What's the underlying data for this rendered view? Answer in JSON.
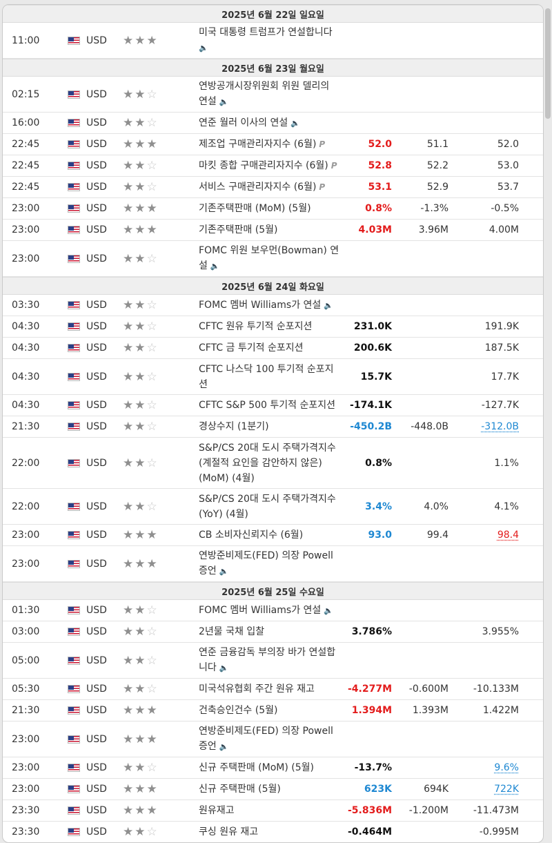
{
  "sections": [
    {
      "date": "2025년 6월 22일 일요일",
      "events": [
        {
          "time": "11:00",
          "currency": "USD",
          "stars": 3,
          "lines": [
            "미국 대통령 트럼프가 연설합니다"
          ],
          "speech": true,
          "speech_line": "next",
          "actual": "",
          "actual_color": "",
          "forecast": "",
          "previous": "",
          "previous_style": ""
        }
      ]
    },
    {
      "date": "2025년 6월 23일 월요일",
      "events": [
        {
          "time": "02:15",
          "currency": "USD",
          "stars": 2,
          "lines": [
            "연방공개시장위원회 위원 델리의",
            "연설"
          ],
          "speech": true,
          "speech_line": "last",
          "actual": "",
          "actual_color": "",
          "forecast": "",
          "previous": "",
          "previous_style": ""
        },
        {
          "time": "16:00",
          "currency": "USD",
          "stars": 2,
          "lines": [
            "연준 월러 이사의 연설"
          ],
          "speech": true,
          "speech_line": "last",
          "actual": "",
          "actual_color": "",
          "forecast": "",
          "previous": "",
          "previous_style": ""
        },
        {
          "time": "22:45",
          "currency": "USD",
          "stars": 3,
          "lines": [
            "제조업 구매관리자지수 (6월)"
          ],
          "pmark": true,
          "actual": "52.0",
          "actual_color": "red",
          "forecast": "51.1",
          "previous": "52.0",
          "previous_style": ""
        },
        {
          "time": "22:45",
          "currency": "USD",
          "stars": 2,
          "lines": [
            "마킷 종합 구매관리자지수 (6월)"
          ],
          "pmark": true,
          "actual": "52.8",
          "actual_color": "red",
          "forecast": "52.2",
          "previous": "53.0",
          "previous_style": ""
        },
        {
          "time": "22:45",
          "currency": "USD",
          "stars": 2,
          "lines": [
            "서비스 구매관리자지수 (6월)"
          ],
          "pmark": true,
          "actual": "53.1",
          "actual_color": "red",
          "forecast": "52.9",
          "previous": "53.7",
          "previous_style": ""
        },
        {
          "time": "23:00",
          "currency": "USD",
          "stars": 3,
          "lines": [
            "기존주택판매 (MoM) (5월)"
          ],
          "actual": "0.8%",
          "actual_color": "red",
          "forecast": "-1.3%",
          "previous": "-0.5%",
          "previous_style": ""
        },
        {
          "time": "23:00",
          "currency": "USD",
          "stars": 3,
          "lines": [
            "기존주택판매 (5월)"
          ],
          "actual": "4.03M",
          "actual_color": "red",
          "forecast": "3.96M",
          "previous": "4.00M",
          "previous_style": ""
        },
        {
          "time": "23:00",
          "currency": "USD",
          "stars": 2,
          "lines": [
            "FOMC 위원 보우먼(Bowman) 연",
            "설"
          ],
          "speech": true,
          "speech_line": "last",
          "actual": "",
          "actual_color": "",
          "forecast": "",
          "previous": "",
          "previous_style": ""
        }
      ]
    },
    {
      "date": "2025년 6월 24일 화요일",
      "events": [
        {
          "time": "03:30",
          "currency": "USD",
          "stars": 2,
          "lines": [
            "FOMC 멤버 Williams가 연설"
          ],
          "speech": true,
          "speech_line": "last",
          "actual": "",
          "actual_color": "",
          "forecast": "",
          "previous": "",
          "previous_style": ""
        },
        {
          "time": "04:30",
          "currency": "USD",
          "stars": 2,
          "lines": [
            "CFTC 원유 투기적 순포지션"
          ],
          "actual": "231.0K",
          "actual_color": "black",
          "forecast": "",
          "previous": "191.9K",
          "previous_style": ""
        },
        {
          "time": "04:30",
          "currency": "USD",
          "stars": 2,
          "lines": [
            "CFTC 금 투기적 순포지션"
          ],
          "actual": "200.6K",
          "actual_color": "black",
          "forecast": "",
          "previous": "187.5K",
          "previous_style": ""
        },
        {
          "time": "04:30",
          "currency": "USD",
          "stars": 2,
          "lines": [
            "CFTC 나스닥 100 투기적 순포지",
            "션"
          ],
          "actual": "15.7K",
          "actual_color": "black",
          "forecast": "",
          "previous": "17.7K",
          "previous_style": ""
        },
        {
          "time": "04:30",
          "currency": "USD",
          "stars": 2,
          "lines": [
            "CFTC S&P 500 투기적 순포지션"
          ],
          "actual": "-174.1K",
          "actual_color": "black",
          "forecast": "",
          "previous": "-127.7K",
          "previous_style": ""
        },
        {
          "time": "21:30",
          "currency": "USD",
          "stars": 2,
          "lines": [
            "경상수지 (1분기)"
          ],
          "actual": "-450.2B",
          "actual_color": "blue",
          "forecast": "-448.0B",
          "previous": "-312.0B",
          "previous_style": "blue"
        },
        {
          "time": "22:00",
          "currency": "USD",
          "stars": 2,
          "lines": [
            "S&P/CS 20대 도시 주택가격지수",
            "(계절적 요인을 감안하지 않은)",
            "(MoM) (4월)"
          ],
          "actual": "0.8%",
          "actual_color": "black",
          "forecast": "",
          "previous": "1.1%",
          "previous_style": ""
        },
        {
          "time": "22:00",
          "currency": "USD",
          "stars": 2,
          "lines": [
            "S&P/CS 20대 도시 주택가격지수",
            "(YoY) (4월)"
          ],
          "actual": "3.4%",
          "actual_color": "blue",
          "forecast": "4.0%",
          "previous": "4.1%",
          "previous_style": ""
        },
        {
          "time": "23:00",
          "currency": "USD",
          "stars": 3,
          "lines": [
            "CB 소비자신뢰지수 (6월)"
          ],
          "actual": "93.0",
          "actual_color": "blue",
          "forecast": "99.4",
          "previous": "98.4",
          "previous_style": "red"
        },
        {
          "time": "23:00",
          "currency": "USD",
          "stars": 3,
          "lines": [
            "연방준비제도(FED) 의장 Powell",
            "증언"
          ],
          "speech": true,
          "speech_line": "last",
          "actual": "",
          "actual_color": "",
          "forecast": "",
          "previous": "",
          "previous_style": ""
        }
      ]
    },
    {
      "date": "2025년 6월 25일 수요일",
      "events": [
        {
          "time": "01:30",
          "currency": "USD",
          "stars": 2,
          "lines": [
            "FOMC 멤버 Williams가 연설"
          ],
          "speech": true,
          "speech_line": "last",
          "actual": "",
          "actual_color": "",
          "forecast": "",
          "previous": "",
          "previous_style": ""
        },
        {
          "time": "03:00",
          "currency": "USD",
          "stars": 2,
          "lines": [
            "2년물 국채 입찰"
          ],
          "actual": "3.786%",
          "actual_color": "black",
          "forecast": "",
          "previous": "3.955%",
          "previous_style": ""
        },
        {
          "time": "05:00",
          "currency": "USD",
          "stars": 2,
          "lines": [
            "연준 금융감독 부의장 바가 연설합",
            "니다"
          ],
          "speech": true,
          "speech_line": "last",
          "actual": "",
          "actual_color": "",
          "forecast": "",
          "previous": "",
          "previous_style": ""
        },
        {
          "time": "05:30",
          "currency": "USD",
          "stars": 2,
          "lines": [
            "미국석유협회 주간 원유 재고"
          ],
          "actual": "-4.277M",
          "actual_color": "red",
          "forecast": "-0.600M",
          "previous": "-10.133M",
          "previous_style": ""
        },
        {
          "time": "21:30",
          "currency": "USD",
          "stars": 3,
          "lines": [
            "건축승인건수 (5월)"
          ],
          "actual": "1.394M",
          "actual_color": "red",
          "forecast": "1.393M",
          "previous": "1.422M",
          "previous_style": ""
        },
        {
          "time": "23:00",
          "currency": "USD",
          "stars": 3,
          "lines": [
            "연방준비제도(FED) 의장 Powell",
            "증언"
          ],
          "speech": true,
          "speech_line": "last",
          "actual": "",
          "actual_color": "",
          "forecast": "",
          "previous": "",
          "previous_style": ""
        },
        {
          "time": "23:00",
          "currency": "USD",
          "stars": 2,
          "lines": [
            "신규 주택판매 (MoM) (5월)"
          ],
          "actual": "-13.7%",
          "actual_color": "black",
          "forecast": "",
          "previous": "9.6%",
          "previous_style": "blue"
        },
        {
          "time": "23:00",
          "currency": "USD",
          "stars": 3,
          "lines": [
            "신규 주택판매 (5월)"
          ],
          "actual": "623K",
          "actual_color": "blue",
          "forecast": "694K",
          "previous": "722K",
          "previous_style": "blue"
        },
        {
          "time": "23:30",
          "currency": "USD",
          "stars": 3,
          "lines": [
            "원유재고"
          ],
          "actual": "-5.836M",
          "actual_color": "red",
          "forecast": "-1.200M",
          "previous": "-11.473M",
          "previous_style": ""
        },
        {
          "time": "23:30",
          "currency": "USD",
          "stars": 2,
          "lines": [
            "쿠싱 원유 재고"
          ],
          "actual": "-0.464M",
          "actual_color": "black",
          "forecast": "",
          "previous": "-0.995M",
          "previous_style": ""
        }
      ]
    }
  ],
  "icons": {
    "speaker": "speaker-icon",
    "flag": "us-flag-icon",
    "star": "star-icon",
    "preliminary": "preliminary-p-icon"
  },
  "colors": {
    "actual_red": "#e31c1c",
    "actual_blue": "#1e88d2",
    "date_bar": "#efefef"
  }
}
